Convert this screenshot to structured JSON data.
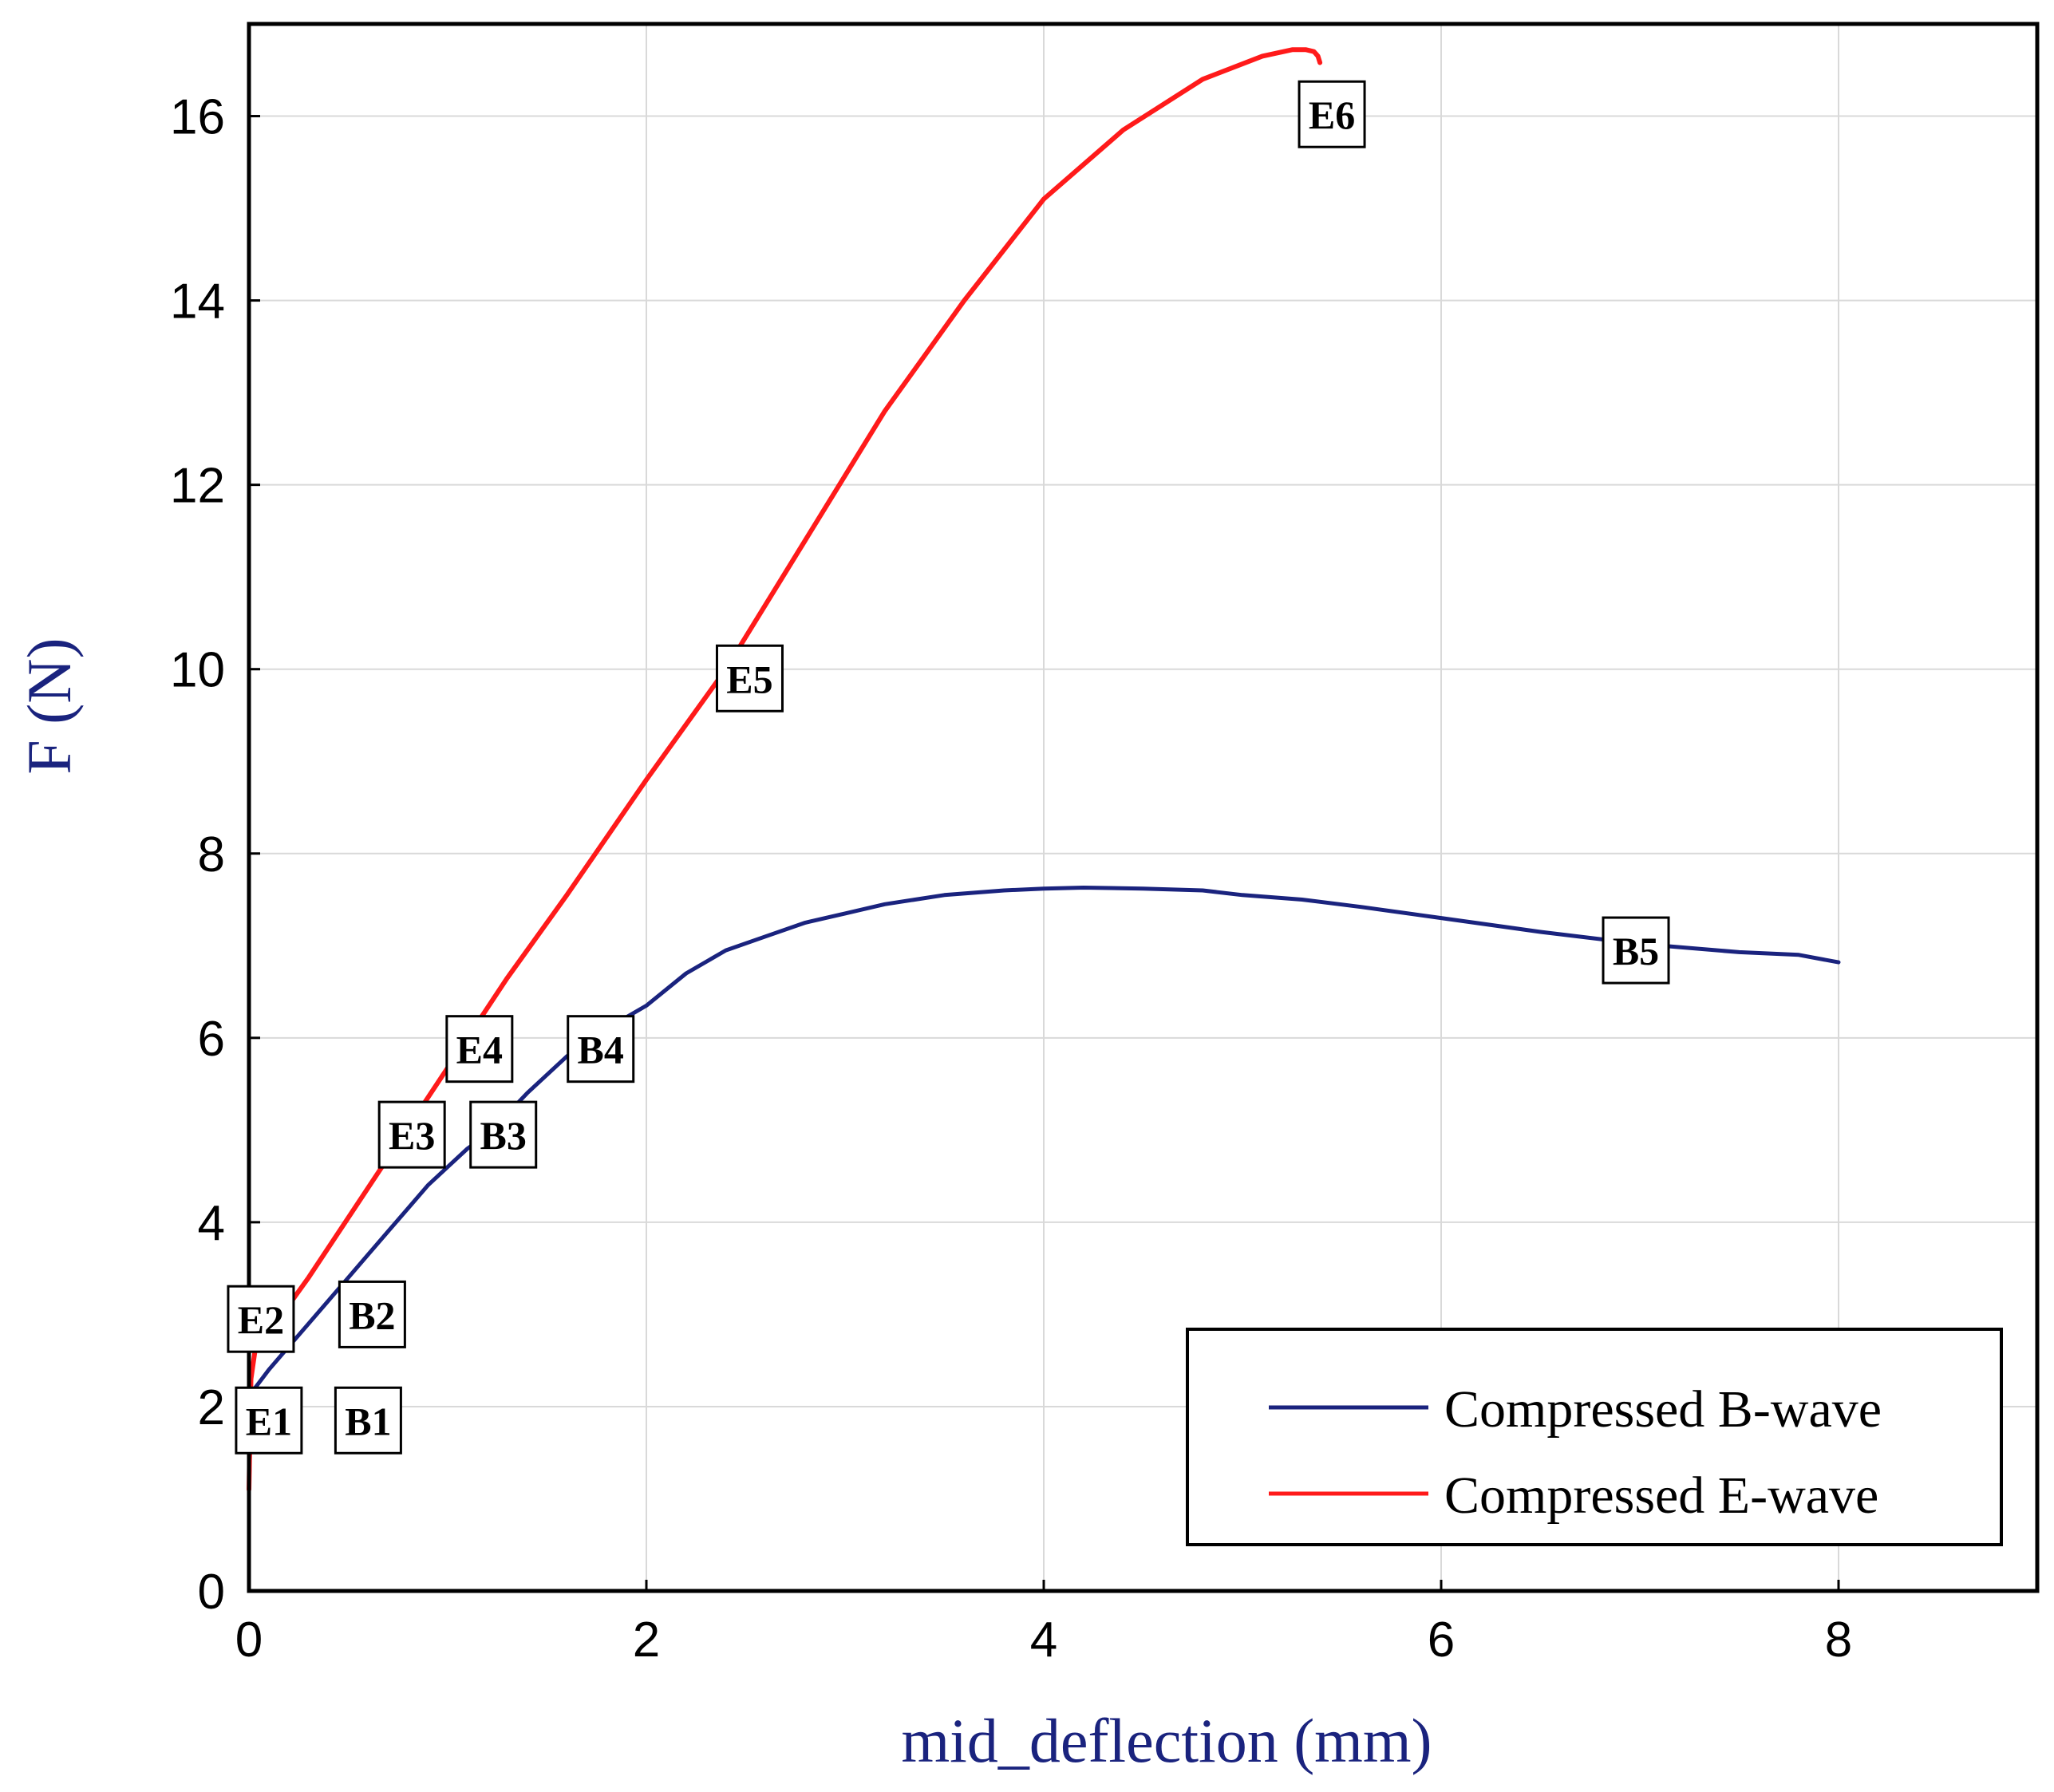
{
  "chart_data": {
    "type": "line",
    "title": "",
    "xlabel": "mid_deflection (mm)",
    "ylabel": "F (N)",
    "xlim": [
      0,
      9
    ],
    "ylim": [
      0,
      17
    ],
    "xticks": [
      0,
      2,
      4,
      6,
      8
    ],
    "yticks": [
      0,
      2,
      4,
      6,
      8,
      10,
      12,
      14,
      16
    ],
    "grid": true,
    "legend_position": "bottom-right",
    "axis_title_color": "#1a237e",
    "series": [
      {
        "name": "Compressed B-wave",
        "color": "#1a237e",
        "x": [
          0,
          0.01,
          0.03,
          0.1,
          0.2,
          0.3,
          0.4,
          0.5,
          0.6,
          0.7,
          0.8,
          0.9,
          1.0,
          1.1,
          1.2,
          1.4,
          1.6,
          1.8,
          2.0,
          2.2,
          2.4,
          2.6,
          2.8,
          3.0,
          3.2,
          3.5,
          3.8,
          4.0,
          4.2,
          4.5,
          4.8,
          5.0,
          5.3,
          5.6,
          6.0,
          6.5,
          7.0,
          7.5,
          7.8,
          8.0
        ],
        "y": [
          1.1,
          1.9,
          2.2,
          2.4,
          2.65,
          2.9,
          3.15,
          3.4,
          3.65,
          3.9,
          4.15,
          4.4,
          4.6,
          4.8,
          4.95,
          5.4,
          5.8,
          6.1,
          6.35,
          6.7,
          6.95,
          7.1,
          7.25,
          7.35,
          7.45,
          7.55,
          7.6,
          7.62,
          7.63,
          7.62,
          7.6,
          7.55,
          7.5,
          7.42,
          7.3,
          7.15,
          7.02,
          6.93,
          6.9,
          6.82
        ]
      },
      {
        "name": "Compressed E-wave",
        "color": "#ff1a1a",
        "x": [
          0,
          0.01,
          0.03,
          0.1,
          0.2,
          0.3,
          0.5,
          0.7,
          0.9,
          1.1,
          1.3,
          1.6,
          2.0,
          2.4,
          2.8,
          3.2,
          3.6,
          4.0,
          4.4,
          4.8,
          5.1,
          5.25,
          5.32,
          5.36,
          5.38,
          5.39
        ],
        "y": [
          1.1,
          2.3,
          2.6,
          2.85,
          3.1,
          3.4,
          4.05,
          4.7,
          5.35,
          6.0,
          6.65,
          7.55,
          8.8,
          10.0,
          11.4,
          12.8,
          14.0,
          15.1,
          15.85,
          16.4,
          16.65,
          16.72,
          16.72,
          16.7,
          16.65,
          16.58
        ]
      }
    ],
    "annotations": [
      {
        "text": "E1",
        "x": 0.1,
        "y": 1.85
      },
      {
        "text": "B1",
        "x": 0.6,
        "y": 1.85
      },
      {
        "text": "E2",
        "x": 0.06,
        "y": 2.95
      },
      {
        "text": "B2",
        "x": 0.62,
        "y": 3.0
      },
      {
        "text": "E3",
        "x": 0.82,
        "y": 4.95
      },
      {
        "text": "B3",
        "x": 1.28,
        "y": 4.95
      },
      {
        "text": "E4",
        "x": 1.16,
        "y": 5.88
      },
      {
        "text": "B4",
        "x": 1.77,
        "y": 5.88
      },
      {
        "text": "E5",
        "x": 2.52,
        "y": 9.9
      },
      {
        "text": "B5",
        "x": 6.98,
        "y": 6.95
      },
      {
        "text": "E6",
        "x": 5.45,
        "y": 16.02
      }
    ]
  }
}
